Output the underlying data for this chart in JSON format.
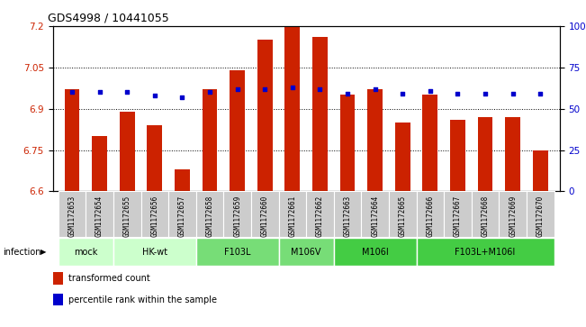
{
  "title": "GDS4998 / 10441055",
  "samples": [
    "GSM1172653",
    "GSM1172654",
    "GSM1172655",
    "GSM1172656",
    "GSM1172657",
    "GSM1172658",
    "GSM1172659",
    "GSM1172660",
    "GSM1172661",
    "GSM1172662",
    "GSM1172663",
    "GSM1172664",
    "GSM1172665",
    "GSM1172666",
    "GSM1172667",
    "GSM1172668",
    "GSM1172669",
    "GSM1172670"
  ],
  "bar_values": [
    6.97,
    6.8,
    6.89,
    6.84,
    6.68,
    6.97,
    7.04,
    7.15,
    7.2,
    7.16,
    6.95,
    6.97,
    6.85,
    6.95,
    6.86,
    6.87,
    6.87,
    6.75
  ],
  "pct_right": [
    60,
    60,
    60,
    58,
    57,
    60,
    62,
    62,
    63,
    62,
    59,
    62,
    59,
    61,
    59,
    59,
    59,
    59
  ],
  "bar_color": "#cc2200",
  "dot_color": "#0000cc",
  "ylim_left": [
    6.6,
    7.2
  ],
  "ylim_right": [
    0,
    100
  ],
  "yticks_left": [
    6.6,
    6.75,
    6.9,
    7.05,
    7.2
  ],
  "yticks_right": [
    0,
    25,
    50,
    75,
    100
  ],
  "ytick_labels_right": [
    "0",
    "25",
    "50",
    "75",
    "100%"
  ],
  "group_spans": [
    {
      "label": "mock",
      "indices": [
        0,
        1
      ],
      "color": "#ccffcc"
    },
    {
      "label": "HK-wt",
      "indices": [
        2,
        3,
        4
      ],
      "color": "#ccffcc"
    },
    {
      "label": "F103L",
      "indices": [
        5,
        6,
        7
      ],
      "color": "#77dd77"
    },
    {
      "label": "M106V",
      "indices": [
        8,
        9
      ],
      "color": "#77dd77"
    },
    {
      "label": "M106I",
      "indices": [
        10,
        11,
        12
      ],
      "color": "#44cc44"
    },
    {
      "label": "F103L+M106I",
      "indices": [
        13,
        14,
        15,
        16,
        17
      ],
      "color": "#44cc44"
    }
  ],
  "bar_width": 0.55,
  "left_label_color": "#cc2200",
  "right_label_color": "#0000cc"
}
